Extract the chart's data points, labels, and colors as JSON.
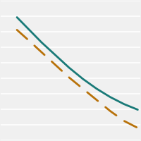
{
  "solid_line": {
    "x": [
      0.12,
      0.2,
      0.3,
      0.4,
      0.5,
      0.6,
      0.7,
      0.8,
      0.9,
      1.0
    ],
    "y": [
      0.88,
      0.8,
      0.7,
      0.61,
      0.52,
      0.44,
      0.37,
      0.31,
      0.26,
      0.22
    ],
    "color": "#1a7a78",
    "linewidth": 2.0
  },
  "dashed_line": {
    "x": [
      0.12,
      0.2,
      0.3,
      0.4,
      0.5,
      0.6,
      0.7,
      0.8,
      0.9,
      1.0
    ],
    "y": [
      0.79,
      0.72,
      0.63,
      0.54,
      0.45,
      0.37,
      0.29,
      0.21,
      0.14,
      0.09
    ],
    "color": "#b8720a",
    "linewidth": 2.0,
    "dashes": [
      7,
      5
    ]
  },
  "xlim": [
    0.0,
    1.02
  ],
  "ylim": [
    0.0,
    1.0
  ],
  "background_color": "#f0f0f0",
  "grid_color": "#ffffff",
  "grid_linewidth": 1.2,
  "n_gridlines": 10
}
